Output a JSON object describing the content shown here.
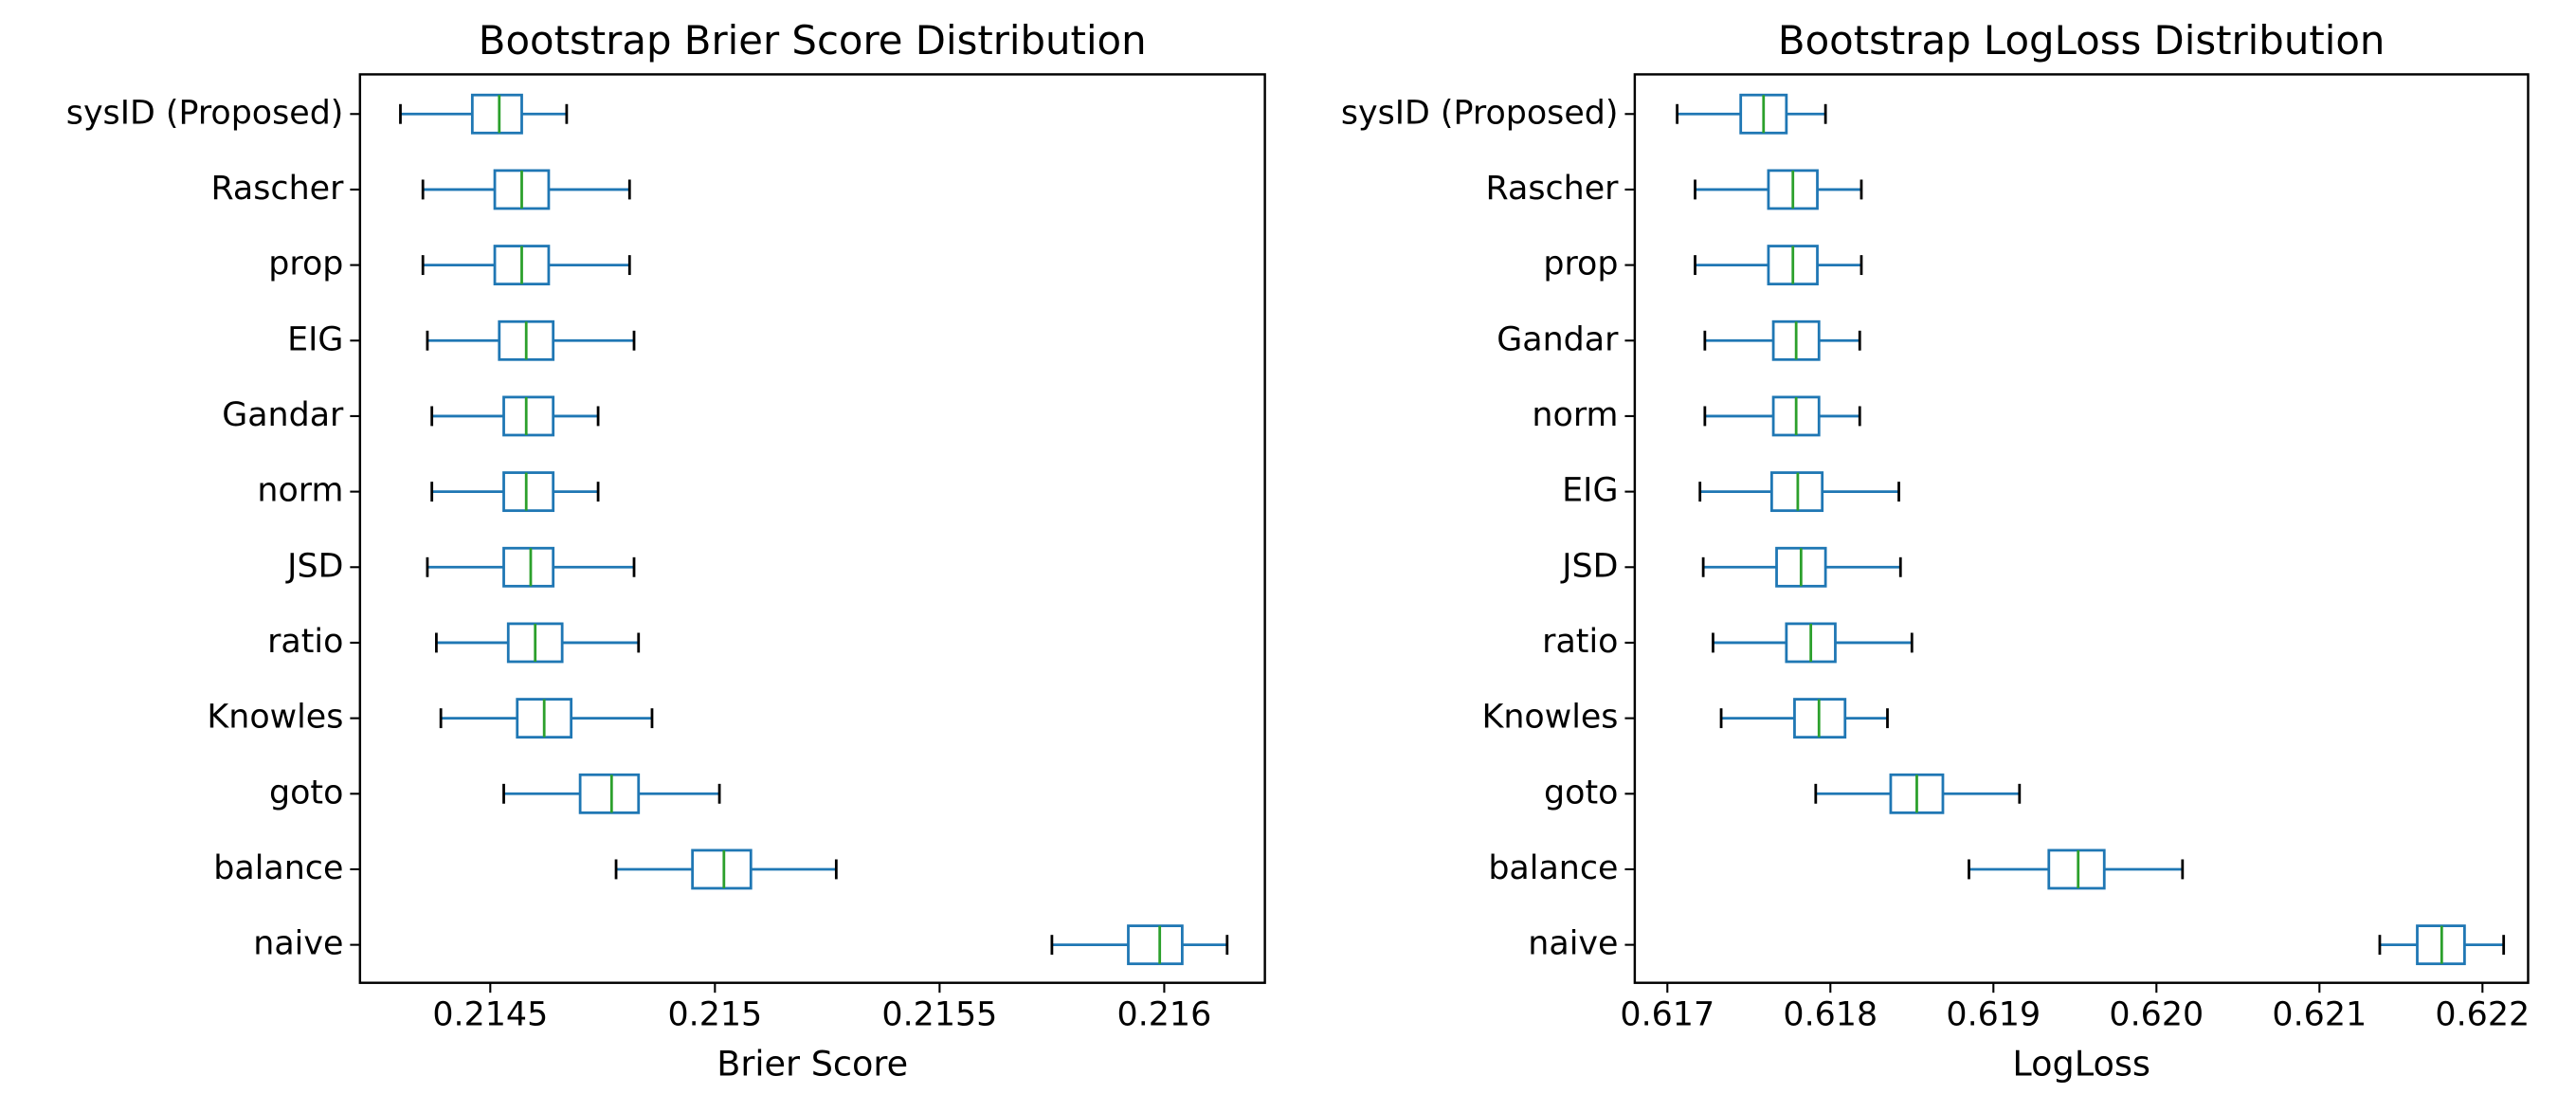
{
  "chart_data": [
    {
      "type": "box",
      "title": "Bootstrap Brier Score Distribution",
      "xlabel": "Brier Score",
      "categories": [
        "sysID (Proposed)",
        "Rascher",
        "prop",
        "EIG",
        "Gandar",
        "norm",
        "JSD",
        "ratio",
        "Knowles",
        "goto",
        "balance",
        "naive"
      ],
      "stats": [
        [
          0.2143,
          0.21446,
          0.21452,
          0.21457,
          0.21467
        ],
        [
          0.21435,
          0.21451,
          0.21457,
          0.21463,
          0.21481
        ],
        [
          0.21435,
          0.21451,
          0.21457,
          0.21463,
          0.21481
        ],
        [
          0.21436,
          0.21452,
          0.21458,
          0.21464,
          0.21482
        ],
        [
          0.21437,
          0.21453,
          0.21458,
          0.21464,
          0.21474
        ],
        [
          0.21437,
          0.21453,
          0.21458,
          0.21464,
          0.21474
        ],
        [
          0.21436,
          0.21453,
          0.21459,
          0.21464,
          0.21482
        ],
        [
          0.21438,
          0.21454,
          0.2146,
          0.21466,
          0.21483
        ],
        [
          0.21439,
          0.21456,
          0.21462,
          0.21468,
          0.21486
        ],
        [
          0.21453,
          0.2147,
          0.21477,
          0.21483,
          0.21501
        ],
        [
          0.21478,
          0.21495,
          0.21502,
          0.21508,
          0.21527
        ],
        [
          0.21575,
          0.21592,
          0.21599,
          0.21604,
          0.21614
        ]
      ],
      "color": "#1f77b4",
      "median_color": "#2ca02c",
      "xlim": [
        0.21421,
        0.216224
      ],
      "xticks": [
        0.2145,
        0.215,
        0.2155,
        0.216
      ]
    },
    {
      "type": "box",
      "title": "Bootstrap LogLoss Distribution",
      "xlabel": "LogLoss",
      "categories": [
        "sysID (Proposed)",
        "Rascher",
        "prop",
        "Gandar",
        "norm",
        "EIG",
        "JSD",
        "ratio",
        "Knowles",
        "goto",
        "balance",
        "naive"
      ],
      "stats": [
        [
          0.61706,
          0.61745,
          0.61759,
          0.61773,
          0.61797
        ],
        [
          0.61717,
          0.61762,
          0.61777,
          0.61792,
          0.61819
        ],
        [
          0.61717,
          0.61762,
          0.61777,
          0.61792,
          0.61819
        ],
        [
          0.61723,
          0.61765,
          0.61779,
          0.61793,
          0.61818
        ],
        [
          0.61723,
          0.61765,
          0.61779,
          0.61793,
          0.61818
        ],
        [
          0.6172,
          0.61764,
          0.6178,
          0.61795,
          0.61842
        ],
        [
          0.61722,
          0.61767,
          0.61782,
          0.61797,
          0.61843
        ],
        [
          0.61728,
          0.61773,
          0.61788,
          0.61803,
          0.6185
        ],
        [
          0.61733,
          0.61778,
          0.61793,
          0.61809,
          0.61835
        ],
        [
          0.61791,
          0.61837,
          0.61853,
          0.61869,
          0.61916
        ],
        [
          0.61885,
          0.61934,
          0.61952,
          0.61968,
          0.62016
        ],
        [
          0.62137,
          0.6216,
          0.62175,
          0.62189,
          0.62213
        ]
      ],
      "color": "#1f77b4",
      "median_color": "#2ca02c",
      "xlim": [
        0.6168,
        0.62228
      ],
      "xticks": [
        0.617,
        0.618,
        0.619,
        {
          "value": 0.62,
          "label": "0.620"
        },
        0.621,
        0.622
      ]
    }
  ]
}
